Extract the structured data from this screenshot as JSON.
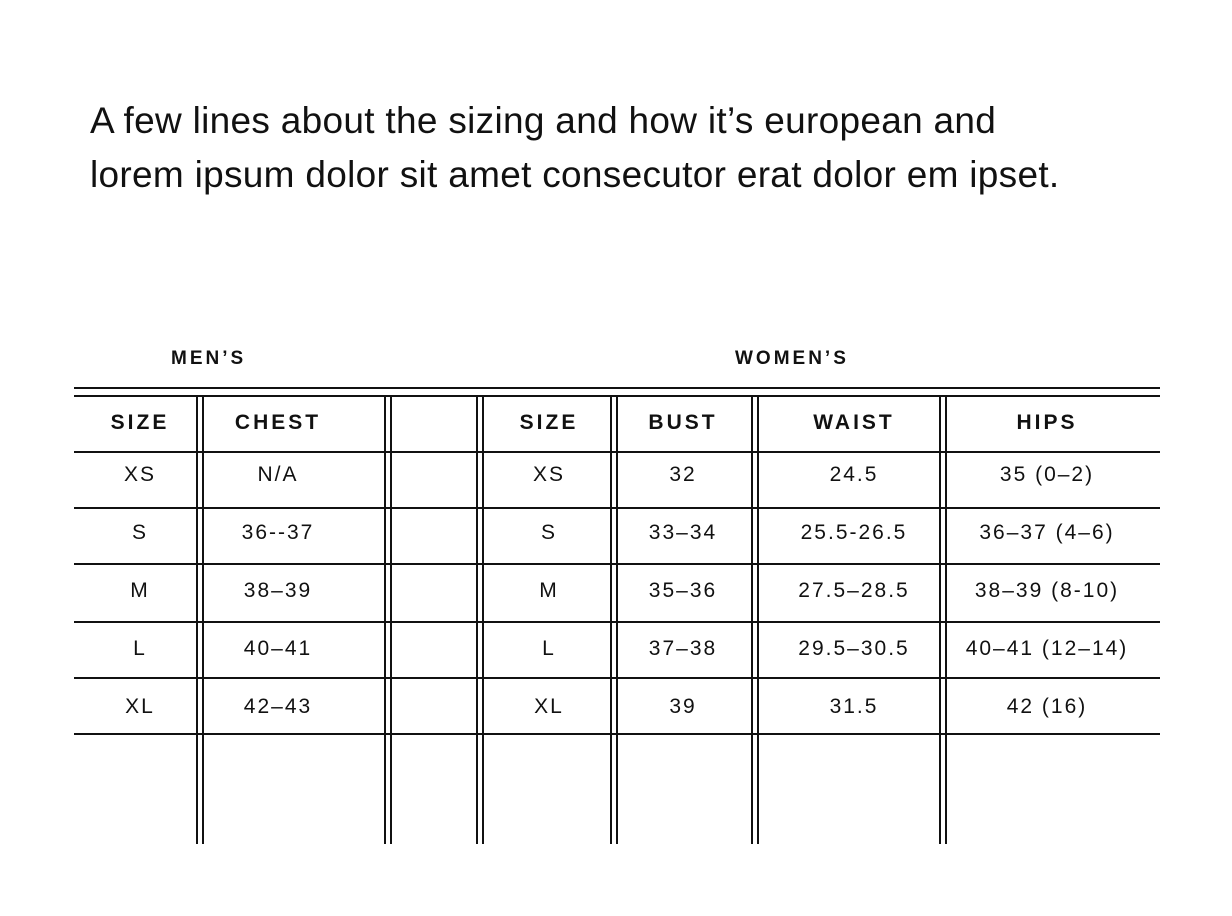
{
  "intro": {
    "lines": [
      "A few lines about the sizing and how it’s european and",
      "lorem ipsum dolor sit amet consecutor erat dolor em ipset."
    ]
  },
  "mens": {
    "title": "MEN’S",
    "headers": [
      "SIZE",
      "CHEST",
      ""
    ],
    "rows": [
      [
        "XS",
        "N/A"
      ],
      [
        "S",
        "36--37"
      ],
      [
        "M",
        "38–39"
      ],
      [
        "L",
        "40–41"
      ],
      [
        "XL",
        "42–43"
      ]
    ]
  },
  "womens": {
    "title": "WOMEN’S",
    "headers": [
      "SIZE",
      "BUST",
      "WAIST",
      "HIPS"
    ],
    "rows": [
      [
        "XS",
        "32",
        "24.5",
        "35 (0–2)"
      ],
      [
        "S",
        "33–34",
        "25.5-26.5",
        "36–37 (4–6)"
      ],
      [
        "M",
        "35–36",
        "27.5–28.5",
        "38–39 (8-10)"
      ],
      [
        "L",
        "37–38",
        "29.5–30.5",
        "40–41 (12–14)"
      ],
      [
        "XL",
        "39",
        "31.5",
        "42 (16)"
      ]
    ]
  }
}
